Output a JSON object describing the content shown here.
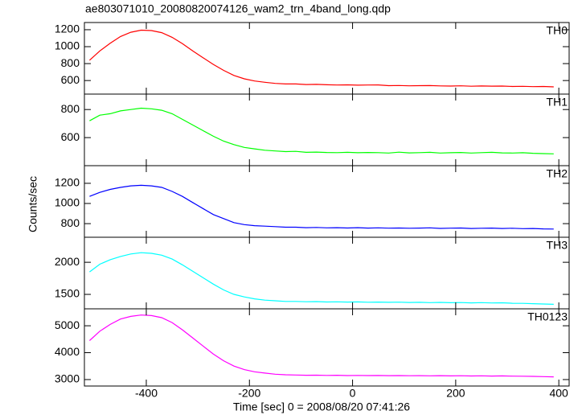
{
  "chart_data": {
    "type": "line",
    "title": "ae803071010_20080820074126_wam2_trn_4band_long.qdp",
    "xlabel": "Time [sec] 0 = 2008/08/20 07:41:26",
    "ylabel": "Counts/sec",
    "xlim": [
      -520,
      420
    ],
    "xticks": [
      -400,
      -200,
      0,
      200,
      400
    ],
    "x": [
      -510,
      -490,
      -470,
      -450,
      -430,
      -410,
      -390,
      -370,
      -350,
      -330,
      -310,
      -290,
      -270,
      -250,
      -230,
      -210,
      -190,
      -170,
      -150,
      -130,
      -110,
      -90,
      -70,
      -50,
      -30,
      -10,
      10,
      30,
      50,
      70,
      90,
      110,
      130,
      150,
      170,
      190,
      210,
      230,
      250,
      270,
      290,
      310,
      330,
      350,
      370,
      390
    ],
    "series": [
      {
        "name": "TH0",
        "color": "#ff0000",
        "ylim": [
          440,
          1285
        ],
        "yticks": [
          600,
          800,
          1000,
          1200
        ],
        "values": [
          840,
          950,
          1040,
          1120,
          1170,
          1195,
          1190,
          1165,
          1110,
          1035,
          950,
          870,
          790,
          720,
          660,
          620,
          595,
          580,
          566,
          560,
          560,
          553,
          555,
          550,
          547,
          549,
          545,
          547,
          548,
          540,
          542,
          538,
          540,
          541,
          537,
          535,
          538,
          533,
          536,
          534,
          535,
          530,
          532,
          528,
          530,
          525
        ]
      },
      {
        "name": "TH1",
        "color": "#00ff00",
        "ylim": [
          400,
          910
        ],
        "yticks": [
          600,
          800
        ],
        "values": [
          720,
          760,
          770,
          790,
          800,
          810,
          805,
          795,
          770,
          730,
          690,
          650,
          610,
          575,
          550,
          530,
          520,
          510,
          505,
          500,
          502,
          495,
          497,
          494,
          493,
          495,
          492,
          494,
          493,
          490,
          496,
          491,
          493,
          495,
          490,
          492,
          494,
          490,
          493,
          495,
          491,
          490,
          492,
          488,
          486,
          484
        ]
      },
      {
        "name": "TH2",
        "color": "#0000ff",
        "ylim": [
          665,
          1375
        ],
        "yticks": [
          800,
          1000,
          1200
        ],
        "values": [
          1070,
          1110,
          1140,
          1160,
          1175,
          1180,
          1175,
          1160,
          1120,
          1070,
          1010,
          950,
          890,
          850,
          810,
          790,
          780,
          775,
          770,
          765,
          765,
          760,
          762,
          758,
          760,
          757,
          760,
          756,
          758,
          755,
          757,
          754,
          756,
          758,
          753,
          755,
          757,
          752,
          754,
          756,
          752,
          754,
          750,
          752,
          748,
          746
        ]
      },
      {
        "name": "TH3",
        "color": "#00ffff",
        "ylim": [
          1275,
          2390
        ],
        "yticks": [
          1500,
          2000
        ],
        "values": [
          1850,
          1970,
          2040,
          2090,
          2130,
          2150,
          2140,
          2110,
          2050,
          1960,
          1860,
          1760,
          1660,
          1570,
          1500,
          1460,
          1430,
          1410,
          1400,
          1390,
          1390,
          1385,
          1388,
          1382,
          1384,
          1380,
          1383,
          1378,
          1380,
          1376,
          1379,
          1374,
          1377,
          1372,
          1375,
          1370,
          1373,
          1368,
          1371,
          1366,
          1369,
          1362,
          1360,
          1355,
          1350,
          1345
        ]
      },
      {
        "name": "TH0123",
        "color": "#ff00ff",
        "ylim": [
          2760,
          5630
        ],
        "yticks": [
          3000,
          4000,
          5000
        ],
        "values": [
          4450,
          4800,
          5050,
          5250,
          5350,
          5400,
          5380,
          5300,
          5120,
          4850,
          4550,
          4250,
          3950,
          3700,
          3500,
          3370,
          3290,
          3240,
          3200,
          3180,
          3170,
          3160,
          3165,
          3155,
          3160,
          3150,
          3155,
          3148,
          3152,
          3145,
          3150,
          3142,
          3147,
          3140,
          3145,
          3138,
          3142,
          3135,
          3140,
          3132,
          3136,
          3128,
          3125,
          3120,
          3110,
          3100
        ]
      }
    ]
  }
}
